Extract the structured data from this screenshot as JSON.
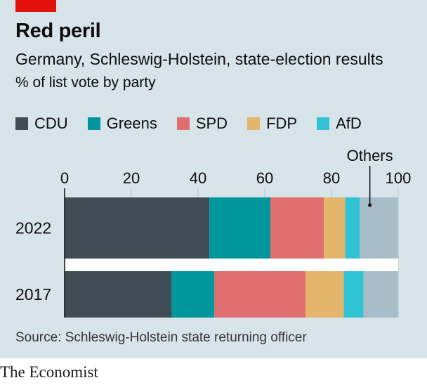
{
  "header": {
    "title": "Red peril",
    "subtitle": "Germany, Schleswig-Holstein, state-election results",
    "unit_note": "% of list vote by party"
  },
  "footer": {
    "source": "Source: Schleswig-Holstein state returning officer",
    "brand": "The Economist"
  },
  "colors": {
    "CDU": "#404d55",
    "Greens": "#00969b",
    "SPD": "#e06e6e",
    "FDP": "#e5b56b",
    "AfD": "#31c2d3",
    "Others": "#a8bdc7",
    "gridline": "#b7c9d1",
    "accent": "#e3120b"
  },
  "chart_data": {
    "type": "bar",
    "orientation": "horizontal",
    "stacked": true,
    "categories": [
      "2022",
      "2017"
    ],
    "series": [
      {
        "name": "CDU",
        "values": [
          43.4,
          32.0
        ],
        "legend": true
      },
      {
        "name": "Greens",
        "values": [
          18.3,
          12.9
        ],
        "legend": true
      },
      {
        "name": "SPD",
        "values": [
          16.0,
          27.3
        ],
        "legend": true
      },
      {
        "name": "FDP",
        "values": [
          6.4,
          11.5
        ],
        "legend": true
      },
      {
        "name": "AfD",
        "values": [
          4.4,
          5.9
        ],
        "legend": true
      },
      {
        "name": "Others",
        "values": [
          11.5,
          10.4
        ],
        "legend": false,
        "annotation": "Others"
      }
    ],
    "xlim": [
      0,
      100
    ],
    "xticks": [
      0,
      20,
      40,
      60,
      80,
      100
    ],
    "xlabel": "",
    "ylabel": "",
    "grid": true,
    "legend_position": "top-left"
  }
}
